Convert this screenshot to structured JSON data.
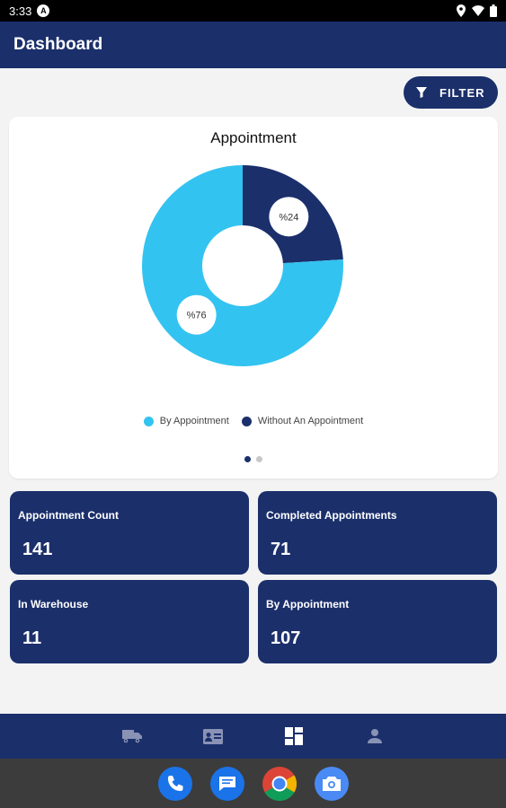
{
  "status_bar": {
    "time": "3:33",
    "notification_letter": "A"
  },
  "app_bar": {
    "title": "Dashboard"
  },
  "filter": {
    "label": "FILTER"
  },
  "chart_data": {
    "type": "pie",
    "title": "Appointment",
    "categories": [
      "By Appointment",
      "Without An Appointment"
    ],
    "values": [
      76,
      24
    ],
    "data_labels": [
      "%76",
      "%24"
    ],
    "colors": [
      "#33c3f0",
      "#1b2f6b"
    ],
    "legend_position": "bottom"
  },
  "pager": {
    "pages": 2,
    "active": 0
  },
  "stats": [
    {
      "label": "Appointment Count",
      "value": "141"
    },
    {
      "label": "Completed Appointments",
      "value": "71"
    },
    {
      "label": "In Warehouse",
      "value": "11"
    },
    {
      "label": "By Appointment",
      "value": "107"
    }
  ],
  "bottom_nav": {
    "items": [
      {
        "icon": "truck-icon",
        "active": false
      },
      {
        "icon": "id-card-icon",
        "active": false
      },
      {
        "icon": "dashboard-icon",
        "active": true
      },
      {
        "icon": "person-icon",
        "active": false
      }
    ]
  },
  "dock": {
    "apps": [
      "phone-icon",
      "messages-icon",
      "chrome-icon",
      "camera-icon"
    ]
  }
}
